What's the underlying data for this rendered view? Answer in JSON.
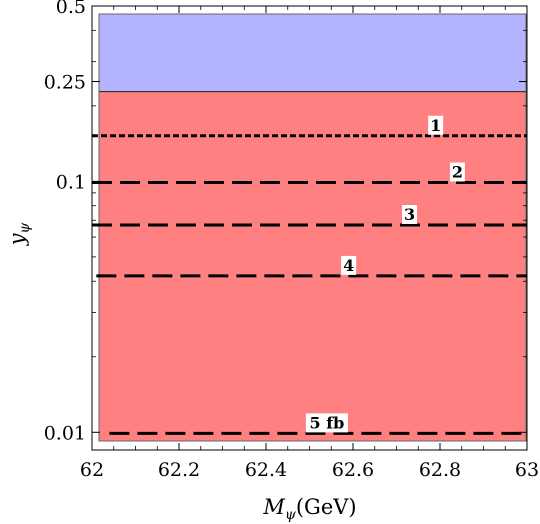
{
  "chart_data": {
    "type": "area",
    "xlabel_main": "M",
    "xlabel_sub": "ψ",
    "xlabel_unit": "(GeV)",
    "ylabel_main": "y",
    "ylabel_sub": "ψ",
    "xlim": [
      62,
      63
    ],
    "ylim": [
      0.0085,
      0.5
    ],
    "yscale": "log",
    "x_ticks": [
      62,
      62.2,
      62.4,
      62.6,
      62.8,
      63
    ],
    "x_tick_labels": [
      "62",
      "62.2",
      "62.4",
      "62.6",
      "62.8",
      "63"
    ],
    "y_ticks": [
      0.01,
      0.1,
      0.25,
      0.5
    ],
    "y_tick_labels": [
      "0.01",
      "0.1",
      "0.25",
      "0.5"
    ],
    "regions": [
      {
        "name": "upper",
        "y_from": 0.228,
        "y_to": 0.5,
        "color": "#b3b3ff"
      },
      {
        "name": "lower",
        "y_from": 0.0085,
        "y_to": 0.228,
        "color": "#ff8080"
      }
    ],
    "contours": [
      {
        "label": "1",
        "y": 0.152,
        "x_start": 62.0,
        "x_end": 63.0,
        "label_x": 62.79,
        "dash": "short"
      },
      {
        "label": "2",
        "y": 0.099,
        "x_start": 62.0,
        "x_end": 63.0,
        "label_x": 62.84,
        "dash": "long"
      },
      {
        "label": "3",
        "y": 0.067,
        "x_start": 62.0,
        "x_end": 63.0,
        "label_x": 62.73,
        "dash": "long"
      },
      {
        "label": "4",
        "y": 0.042,
        "x_start": 62.01,
        "x_end": 63.0,
        "label_x": 62.59,
        "dash": "long"
      },
      {
        "label": "5 fb",
        "y": 0.0099,
        "x_start": 62.04,
        "x_end": 63.0,
        "label_x": 62.54,
        "dash": "long"
      }
    ]
  }
}
